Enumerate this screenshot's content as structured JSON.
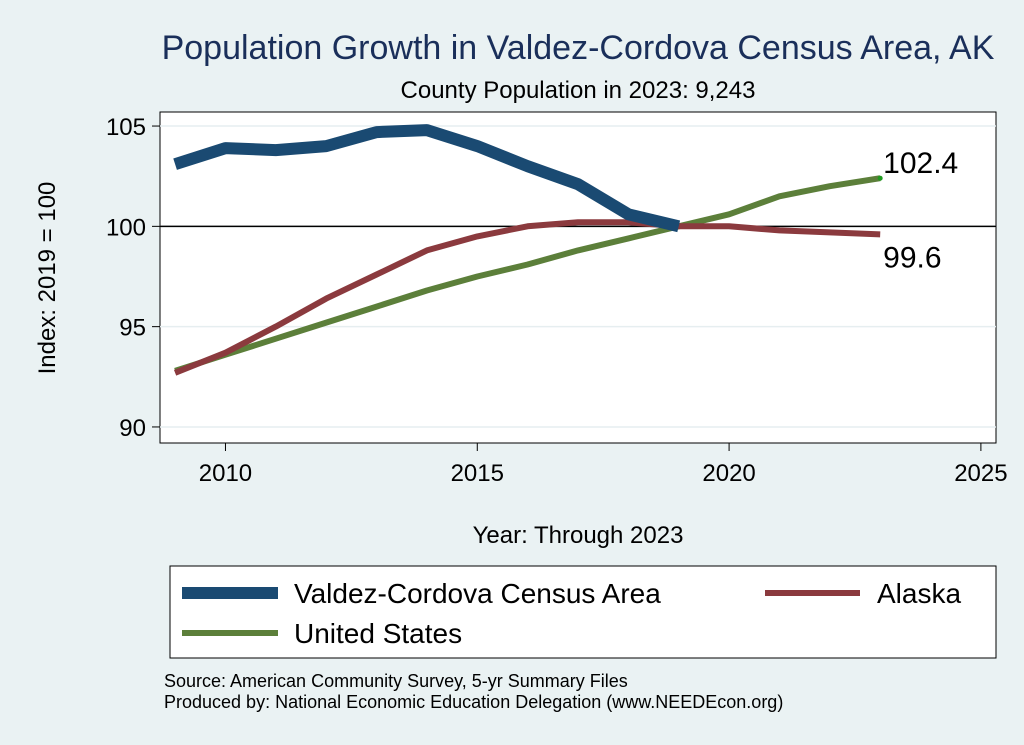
{
  "chart_data": {
    "type": "line",
    "title": "Population Growth in Valdez-Cordova Census Area, AK",
    "subtitle": "County Population in 2023: 9,243",
    "xlabel": "Year: Through 2023",
    "ylabel": "Index: 2019 = 100",
    "xlim": [
      2008.7,
      2025.3
    ],
    "ylim": [
      89.2,
      105.7
    ],
    "xticks": [
      2010,
      2015,
      2020,
      2025
    ],
    "yticks": [
      90,
      95,
      100,
      105
    ],
    "reference_line": 100,
    "x": [
      2009,
      2010,
      2011,
      2012,
      2013,
      2014,
      2015,
      2016,
      2017,
      2018,
      2019,
      2020,
      2021,
      2022,
      2023
    ],
    "series": [
      {
        "name": "Valdez-Cordova Census Area",
        "color": "#1a4a72",
        "values": [
          103.1,
          103.9,
          103.8,
          104.0,
          104.7,
          104.8,
          104.0,
          103.0,
          102.1,
          100.6,
          100.0,
          null,
          null,
          null,
          null
        ]
      },
      {
        "name": "Alaska",
        "color": "#8b3a3e",
        "values": [
          92.7,
          93.7,
          95.0,
          96.4,
          97.6,
          98.8,
          99.5,
          100.0,
          100.2,
          100.2,
          100.0,
          100.0,
          99.8,
          99.7,
          99.6
        ]
      },
      {
        "name": "United States",
        "color": "#5c7f3a",
        "values": [
          92.8,
          93.6,
          94.4,
          95.2,
          96.0,
          96.8,
          97.5,
          98.1,
          98.8,
          99.4,
          100.0,
          100.6,
          101.5,
          102.0,
          102.4
        ]
      }
    ],
    "end_labels": [
      {
        "series": "United States",
        "text": "102.4",
        "x": 2023,
        "y": 102.4
      },
      {
        "series": "Alaska",
        "text": "99.6",
        "x": 2023,
        "y": 99.6
      }
    ]
  },
  "legend": {
    "items": [
      {
        "label": "Valdez-Cordova Census Area",
        "color": "#1a4a72",
        "thick": true
      },
      {
        "label": "Alaska",
        "color": "#8b3a3e",
        "thick": false
      },
      {
        "label": "United States",
        "color": "#5c7f3a",
        "thick": false
      }
    ]
  },
  "footer": {
    "source": "Source: American Community Survey, 5-yr Summary Files",
    "produced": "Produced by: National Economic Education Delegation (www.NEEDEcon.org)"
  }
}
